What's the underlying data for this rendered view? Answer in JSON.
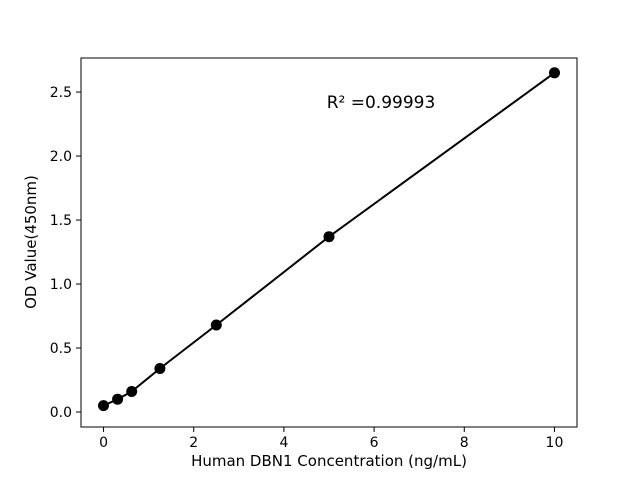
{
  "figure": {
    "background": "#ffffff",
    "foreground": "#000000"
  },
  "chart_data": {
    "type": "scatter",
    "title": "",
    "xlabel": "Human DBN1 Concentration (ng/mL)",
    "ylabel": "OD Value(450nm)",
    "annotation": "R² =0.99993",
    "x": [
      0,
      0.3125,
      0.625,
      1.25,
      2.5,
      5,
      10
    ],
    "y": [
      0.05,
      0.1,
      0.16,
      0.34,
      0.68,
      1.37,
      2.65
    ],
    "series_name": "standard-curve",
    "line": true,
    "line_color": "#000000",
    "marker": "circle",
    "marker_color": "#000000",
    "marker_radius": 5.5,
    "xlim": [
      -0.5,
      10.5
    ],
    "ylim": [
      -0.117,
      2.766
    ],
    "x_ticks": {
      "values": [
        0,
        2,
        4,
        6,
        8,
        10
      ],
      "labels": [
        "0",
        "2",
        "4",
        "6",
        "8",
        "10"
      ]
    },
    "y_ticks": {
      "values": [
        0.0,
        0.5,
        1.0,
        1.5,
        2.0,
        2.5
      ],
      "labels": [
        "0.0",
        "0.5",
        "1.0",
        "1.5",
        "2.0",
        "2.5"
      ]
    },
    "grid": false,
    "legend": null
  }
}
